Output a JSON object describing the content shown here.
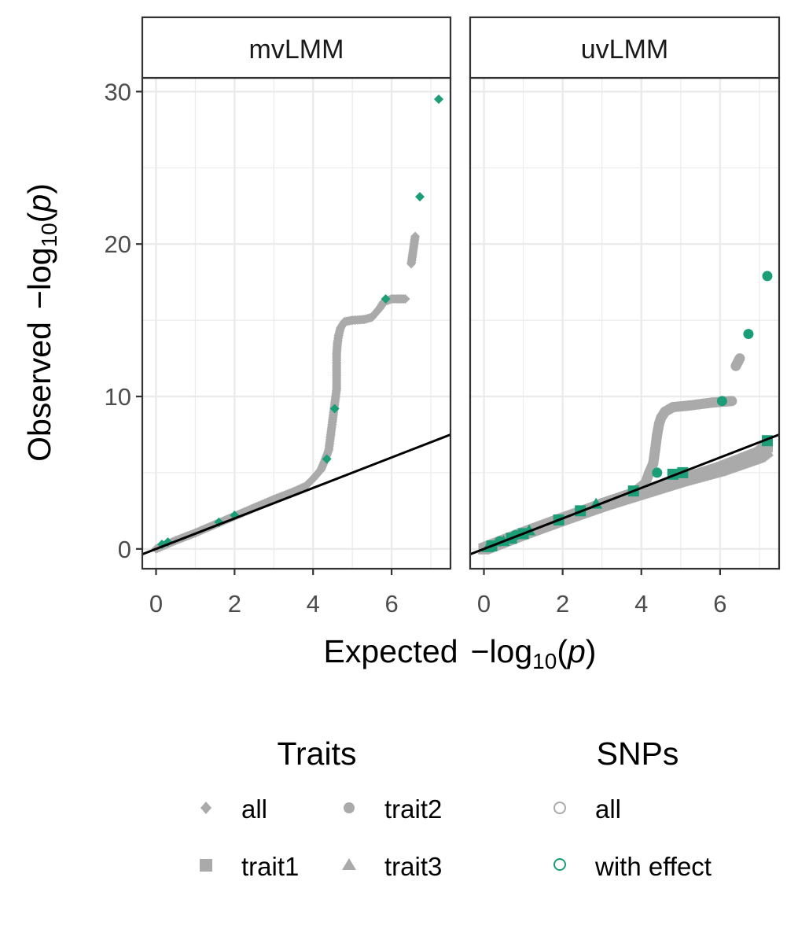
{
  "chart_data": {
    "type": "scatter",
    "title": "",
    "xlabel": {
      "main": "Expected",
      "minus": "−log",
      "sub": "10",
      "open": "(",
      "var": "p",
      "close": ")"
    },
    "ylabel": {
      "main": "Observed",
      "minus": "−log",
      "sub": "10",
      "open": "(",
      "var": "p",
      "close": ")"
    },
    "xlim": [
      -0.35,
      7.5
    ],
    "ylim": [
      -1.3,
      30.9
    ],
    "x_ticks": [
      0,
      2,
      4,
      6
    ],
    "y_ticks": [
      0,
      10,
      20,
      30
    ],
    "grid": true,
    "reference_line": {
      "slope": 1,
      "intercept": 0
    },
    "colors": {
      "all": "#aaaaaa",
      "with_effect": "#1b9e77",
      "panel_border": "#333333",
      "strip_fill": "#ffffff",
      "grid": "#ebebeb"
    },
    "panels": [
      {
        "name": "mvLMM",
        "curves": [
          {
            "trait": "all",
            "snps": "all",
            "points": [
              [
                0,
                0
              ],
              [
                0.5,
                0.55
              ],
              [
                1,
                1.05
              ],
              [
                1.5,
                1.6
              ],
              [
                2,
                2.15
              ],
              [
                2.5,
                2.7
              ],
              [
                3,
                3.25
              ],
              [
                3.5,
                3.75
              ],
              [
                3.8,
                4.1
              ],
              [
                4,
                4.6
              ],
              [
                4.2,
                5.2
              ],
              [
                4.3,
                5.8
              ],
              [
                4.4,
                6.5
              ],
              [
                4.45,
                7.5
              ],
              [
                4.5,
                8.5
              ],
              [
                4.55,
                9.5
              ],
              [
                4.6,
                10.5
              ],
              [
                4.6,
                12.8
              ],
              [
                4.62,
                13.5
              ],
              [
                4.65,
                14.0
              ],
              [
                4.7,
                14.5
              ],
              [
                4.8,
                14.9
              ],
              [
                5.0,
                15.0
              ],
              [
                5.3,
                15.05
              ],
              [
                5.5,
                15.2
              ],
              [
                5.7,
                15.8
              ],
              [
                5.8,
                16.2
              ],
              [
                6.0,
                16.4
              ],
              [
                6.2,
                16.4
              ],
              [
                6.35,
                16.4
              ]
            ]
          },
          {
            "trait": "all",
            "snps": "all",
            "points": [
              [
                6.5,
                18.7
              ],
              [
                6.6,
                20.5
              ]
            ]
          },
          {
            "trait": "all",
            "snps": "with effect",
            "points": [
              [
                0.15,
                0.3
              ],
              [
                0.3,
                0.45
              ],
              [
                1.6,
                1.75
              ],
              [
                2.0,
                2.2
              ],
              [
                4.35,
                5.9
              ],
              [
                4.55,
                9.2
              ],
              [
                5.85,
                16.4
              ],
              [
                6.72,
                23.1
              ],
              [
                7.2,
                29.5
              ]
            ]
          }
        ]
      },
      {
        "name": "uvLMM",
        "curves": [
          {
            "trait": "trait1",
            "snps": "all",
            "points": [
              [
                0,
                0
              ],
              [
                1,
                1
              ],
              [
                2,
                1.95
              ],
              [
                3,
                2.85
              ],
              [
                4,
                3.7
              ],
              [
                5,
                4.5
              ],
              [
                6,
                5.3
              ],
              [
                7,
                6.3
              ],
              [
                7.2,
                6.7
              ]
            ]
          },
          {
            "trait": "trait2",
            "snps": "all",
            "points": [
              [
                0,
                0
              ],
              [
                1,
                1
              ],
              [
                2,
                2
              ],
              [
                3,
                3
              ],
              [
                3.8,
                3.7
              ],
              [
                4.1,
                4.3
              ],
              [
                4.2,
                5.0
              ],
              [
                4.3,
                5.6
              ],
              [
                4.35,
                6.5
              ],
              [
                4.4,
                7.5
              ],
              [
                4.45,
                8.2
              ],
              [
                4.5,
                8.6
              ],
              [
                4.6,
                9.0
              ],
              [
                4.8,
                9.3
              ],
              [
                5.2,
                9.4
              ],
              [
                5.8,
                9.6
              ],
              [
                6.3,
                9.7
              ]
            ]
          },
          {
            "trait": "trait2",
            "snps": "all",
            "points": [
              [
                6.4,
                12.0
              ],
              [
                6.5,
                12.5
              ]
            ]
          },
          {
            "trait": "trait3",
            "snps": "all",
            "points": [
              [
                0,
                0
              ],
              [
                1,
                0.98
              ],
              [
                2,
                1.9
              ],
              [
                3,
                2.8
              ],
              [
                4,
                3.6
              ],
              [
                5,
                4.4
              ],
              [
                6,
                5.1
              ],
              [
                7,
                6.0
              ],
              [
                7.2,
                6.4
              ]
            ]
          },
          {
            "trait": "trait2",
            "snps": "with effect",
            "points": [
              [
                0.4,
                0.5
              ],
              [
                0.8,
                0.9
              ],
              [
                4.4,
                5.0
              ],
              [
                6.05,
                9.7
              ],
              [
                6.72,
                14.1
              ],
              [
                7.2,
                17.9
              ]
            ]
          },
          {
            "trait": "trait1",
            "snps": "with effect",
            "points": [
              [
                0.2,
                0.2
              ],
              [
                0.7,
                0.7
              ],
              [
                1.0,
                1.0
              ],
              [
                1.9,
                1.9
              ],
              [
                2.45,
                2.5
              ],
              [
                3.8,
                3.8
              ],
              [
                4.8,
                4.9
              ],
              [
                5.05,
                5.0
              ],
              [
                7.2,
                7.1
              ]
            ]
          },
          {
            "trait": "trait3",
            "snps": "with effect",
            "points": [
              [
                0.1,
                0.1
              ],
              [
                0.5,
                0.5
              ],
              [
                1.15,
                1.2
              ],
              [
                2.85,
                2.95
              ]
            ]
          }
        ]
      }
    ]
  },
  "legend": {
    "traits": {
      "title": "Traits",
      "items": [
        {
          "label": "all",
          "icon": "diamond-icon"
        },
        {
          "label": "trait2",
          "icon": "circle-icon"
        },
        {
          "label": "trait1",
          "icon": "square-icon"
        },
        {
          "label": "trait3",
          "icon": "triangle-icon"
        }
      ]
    },
    "snps": {
      "title": "SNPs",
      "items": [
        {
          "label": "all",
          "color": "#aaaaaa",
          "icon": "open-circle-icon"
        },
        {
          "label": "with effect",
          "color": "#1b9e77",
          "icon": "open-circle-icon"
        }
      ]
    }
  }
}
